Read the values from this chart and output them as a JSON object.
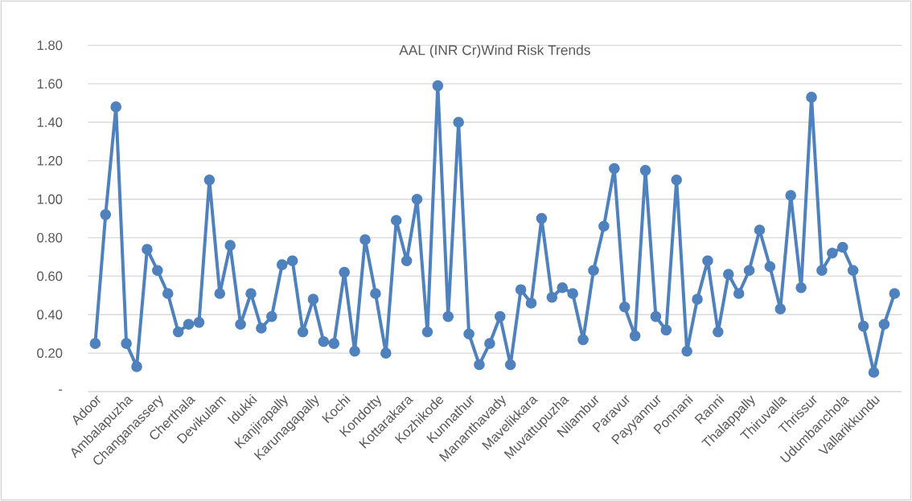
{
  "chart_data": {
    "type": "line",
    "title": "AAL (INR Cr)Wind Risk Trends",
    "categories": [
      "Adoor",
      null,
      null,
      "Ambalapuzha",
      null,
      null,
      "Changanassery",
      null,
      null,
      "Cherthala",
      null,
      null,
      "Devikulam",
      null,
      null,
      "Idukki",
      null,
      null,
      "Kanjirapally",
      null,
      null,
      "Karunagapally",
      null,
      null,
      "Kochi",
      null,
      null,
      "Kondotty",
      null,
      null,
      "Kottarakara",
      null,
      null,
      "Kozhikode",
      null,
      null,
      "Kunnathur",
      null,
      null,
      "Mananthavady",
      null,
      null,
      "Mavelikkara",
      null,
      null,
      "Muvattupuzha",
      null,
      null,
      "Nilambur",
      null,
      null,
      "Paravur",
      null,
      null,
      "Payyannur",
      null,
      null,
      "Ponnani",
      null,
      null,
      "Ranni",
      null,
      null,
      "Thalappally",
      null,
      null,
      "Thiruvalla",
      null,
      null,
      "Thrissur",
      null,
      null,
      "Udumbanchola",
      null,
      null,
      "Vallarikkundu",
      null,
      null
    ],
    "series": [
      {
        "color": "#4f81bd",
        "values": [
          0.25,
          0.92,
          1.48,
          0.25,
          0.13,
          0.74,
          0.63,
          0.51,
          0.31,
          0.35,
          0.36,
          1.1,
          0.51,
          0.76,
          0.35,
          0.51,
          0.33,
          0.39,
          0.66,
          0.68,
          0.31,
          0.48,
          0.26,
          0.25,
          0.62,
          0.21,
          0.79,
          0.51,
          0.2,
          0.89,
          0.68,
          1.0,
          0.31,
          1.59,
          0.39,
          1.4,
          0.3,
          0.14,
          0.25,
          0.39,
          0.14,
          0.53,
          0.46,
          0.9,
          0.49,
          0.54,
          0.51,
          0.27,
          0.63,
          0.86,
          1.16,
          0.44,
          0.29,
          1.15,
          0.39,
          0.32,
          1.1,
          0.21,
          0.48,
          0.68,
          0.31,
          0.61,
          0.51,
          0.63,
          0.84,
          0.65,
          0.43,
          1.02,
          0.54,
          1.53,
          0.63,
          0.72,
          0.75,
          0.63,
          0.34,
          0.1,
          0.35,
          0.51
        ]
      }
    ],
    "ylim": [
      0,
      1.8
    ],
    "yticks": [
      {
        "value": 0,
        "label": "-"
      },
      {
        "value": 0.2,
        "label": "0.20"
      },
      {
        "value": 0.4,
        "label": "0.40"
      },
      {
        "value": 0.6,
        "label": "0.60"
      },
      {
        "value": 0.8,
        "label": "0.80"
      },
      {
        "value": 1.0,
        "label": "1.00"
      },
      {
        "value": 1.2,
        "label": "1.20"
      },
      {
        "value": 1.4,
        "label": "1.40"
      },
      {
        "value": 1.6,
        "label": "1.60"
      },
      {
        "value": 1.8,
        "label": "1.80"
      }
    ],
    "grid": "y",
    "marker": "circle"
  }
}
